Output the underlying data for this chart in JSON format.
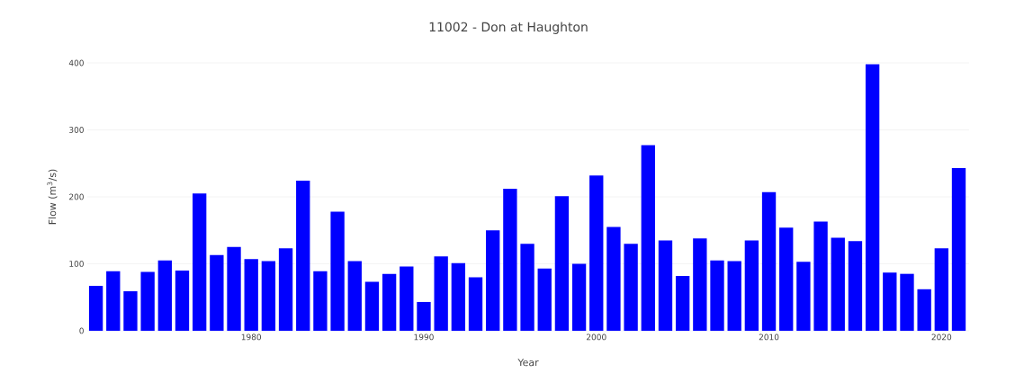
{
  "chart_data": {
    "type": "bar",
    "title": "11002 - Don at Haughton",
    "xlabel": "Year",
    "ylabel": "Flow (m$^{3}$/s)",
    "x": [
      1971,
      1972,
      1973,
      1974,
      1975,
      1976,
      1977,
      1978,
      1979,
      1980,
      1981,
      1982,
      1983,
      1984,
      1985,
      1986,
      1987,
      1988,
      1989,
      1990,
      1991,
      1992,
      1993,
      1994,
      1995,
      1996,
      1997,
      1998,
      1999,
      2000,
      2001,
      2002,
      2003,
      2004,
      2005,
      2006,
      2007,
      2008,
      2009,
      2010,
      2011,
      2012,
      2013,
      2014,
      2015,
      2016,
      2017,
      2018,
      2019,
      2020,
      2021
    ],
    "values": [
      67,
      89,
      59,
      88,
      105,
      90,
      205,
      113,
      125,
      107,
      104,
      123,
      224,
      89,
      178,
      104,
      73,
      85,
      96,
      43,
      111,
      101,
      80,
      150,
      212,
      130,
      93,
      201,
      100,
      232,
      155,
      130,
      277,
      135,
      82,
      138,
      105,
      104,
      135,
      207,
      154,
      103,
      163,
      139,
      134,
      398,
      87,
      85,
      62,
      123,
      243
    ],
    "color": "#0000ff",
    "xlim": [
      1970.5,
      2021.6
    ],
    "xticks": [
      1980,
      1990,
      2000,
      2010,
      2020
    ],
    "ylim": [
      0,
      400
    ],
    "yticks": [
      0,
      100,
      200,
      300,
      400
    ],
    "grid": "y"
  }
}
